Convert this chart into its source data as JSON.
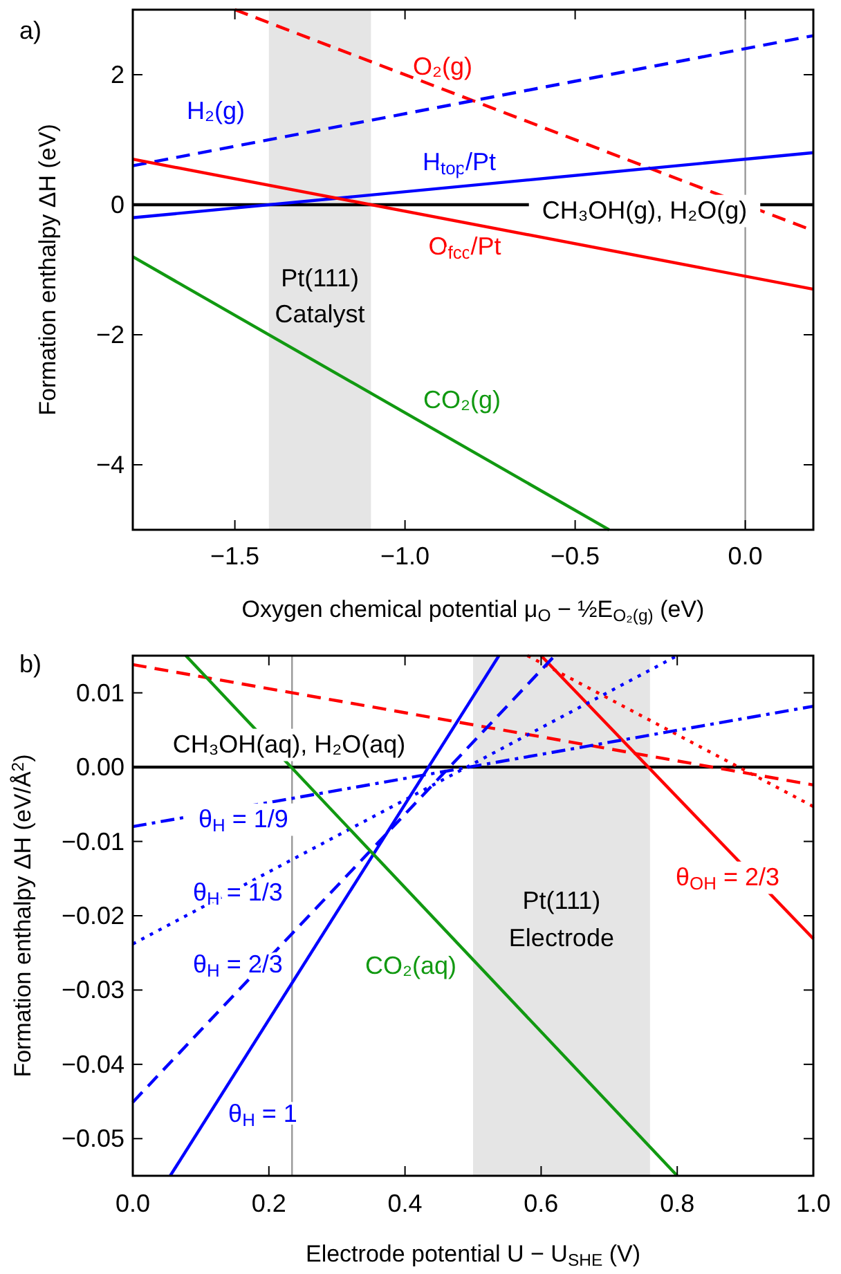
{
  "chart_data": [
    {
      "type": "line",
      "title": "a)",
      "xlabel": "Oxygen chemical potential μ$_{O}$ − ½E$_{O₂(g)}$ (eV)",
      "ylabel": "Formation enthalpy ΔH (eV)",
      "xlim": [
        -1.8,
        0.2
      ],
      "ylim": [
        -5,
        3
      ],
      "xticks": [
        {
          "value": -1.5,
          "label": "−1.5"
        },
        {
          "value": -1.0,
          "label": "−1.0"
        },
        {
          "value": -0.5,
          "label": "−0.5"
        },
        {
          "value": 0,
          "label": "0.0"
        }
      ],
      "yticks": [
        {
          "value": -4,
          "label": "−4"
        },
        {
          "value": -2,
          "label": "−2"
        },
        {
          "value": 0,
          "label": "0"
        },
        {
          "value": 2,
          "label": "2"
        }
      ],
      "bands": [
        {
          "axis": "x",
          "from": -1.4,
          "to": -1.1,
          "label": "Pt(111) Catalyst",
          "color": "#e5e5e5"
        }
      ],
      "ref_lines": [
        {
          "axis": "x",
          "value": 0,
          "color": "#999999"
        }
      ],
      "series": [
        {
          "name": "CH₃OH(g), H₂O(g)",
          "color": "#000000",
          "x": [
            -1.8,
            0.2
          ],
          "values": [
            0,
            0
          ],
          "line_style": "solid"
        },
        {
          "name": "O₂(g)",
          "color": "#ff0000",
          "x": [
            -1.5,
            0.2
          ],
          "values": [
            3,
            -0.4
          ],
          "line_style": "dashed"
        },
        {
          "name": "H₂(g)",
          "color": "#0000ff",
          "x": [
            -1.8,
            0.2
          ],
          "values": [
            0.6,
            2.6
          ],
          "line_style": "dashed"
        },
        {
          "name": "H$_{top}$/Pt",
          "color": "#0000ff",
          "x": [
            -1.8,
            0.2
          ],
          "values": [
            -0.2,
            0.8
          ],
          "line_style": "solid"
        },
        {
          "name": "O$_{fcc}$/Pt",
          "color": "#ff0000",
          "x": [
            -1.8,
            0.2
          ],
          "values": [
            0.7,
            -1.3
          ],
          "line_style": "solid"
        },
        {
          "name": "CO₂(g)",
          "color": "#119911",
          "x": [
            -1.8,
            -0.4
          ],
          "values": [
            -0.8,
            -5
          ],
          "line_style": "solid"
        }
      ]
    },
    {
      "type": "line",
      "title": "b)",
      "xlabel": "Electrode potential U − U$_{SHE}$ (V)",
      "ylabel": "Formation enthalpy ΔH (eV/Å$^{2}$)",
      "xlim": [
        0,
        1
      ],
      "ylim": [
        -0.055,
        0.015
      ],
      "xticks": [
        {
          "value": 0,
          "label": "0.0"
        },
        {
          "value": 0.2,
          "label": "0.2"
        },
        {
          "value": 0.4,
          "label": "0.4"
        },
        {
          "value": 0.6,
          "label": "0.6"
        },
        {
          "value": 0.8,
          "label": "0.8"
        },
        {
          "value": 1,
          "label": "1.0"
        }
      ],
      "yticks": [
        {
          "value": -0.05,
          "label": "−0.05"
        },
        {
          "value": -0.04,
          "label": "−0.04"
        },
        {
          "value": -0.03,
          "label": "−0.03"
        },
        {
          "value": -0.02,
          "label": "−0.02"
        },
        {
          "value": -0.01,
          "label": "−0.01"
        },
        {
          "value": 0,
          "label": "0.00"
        },
        {
          "value": 0.01,
          "label": "0.01"
        }
      ],
      "bands": [
        {
          "axis": "x",
          "from": 0.5,
          "to": 0.76,
          "label": "Pt(111) Electrode",
          "color": "#e5e5e5"
        }
      ],
      "ref_lines": [
        {
          "axis": "x",
          "value": 0.234,
          "color": "#999999"
        }
      ],
      "series": [
        {
          "name": "CH₃OH(aq), H₂O(aq)",
          "color": "#000000",
          "x": [
            0,
            1
          ],
          "values": [
            0,
            0
          ],
          "line_style": "solid"
        },
        {
          "color": "#ff0000",
          "x": [
            0,
            1
          ],
          "values": [
            0.0138,
            -0.0024
          ],
          "line_style": "dashed"
        },
        {
          "color": "#ff0000",
          "x": [
            0.58,
            1
          ],
          "values": [
            0.015,
            -0.0053
          ],
          "line_style": "dotted"
        },
        {
          "name": "θ$_{OH}$ = 2/3",
          "color": "#ff0000",
          "x": [
            0.6,
            1
          ],
          "values": [
            0.015,
            -0.0231
          ],
          "line_style": "solid"
        },
        {
          "name": "θ$_{H}$ = 1/9",
          "color": "#0000ff",
          "x": [
            0,
            1
          ],
          "values": [
            -0.008,
            0.0082
          ],
          "line_style": "dashdot"
        },
        {
          "name": "θ$_{H}$ = 1/3",
          "color": "#0000ff",
          "x": [
            0,
            0.8
          ],
          "values": [
            -0.0238,
            0.015
          ],
          "line_style": "dotted"
        },
        {
          "name": "θ$_{H}$ = 2/3",
          "color": "#0000ff",
          "x": [
            0,
            0.62
          ],
          "values": [
            -0.0451,
            0.015
          ],
          "line_style": "dashed"
        },
        {
          "name": "θ$_{H}$ = 1",
          "color": "#0000ff",
          "x": [
            0.055,
            0.538
          ],
          "values": [
            -0.055,
            0.015
          ],
          "line_style": "solid"
        },
        {
          "name": "CO₂(aq)",
          "color": "#119911",
          "x": [
            0.078,
            0.8
          ],
          "values": [
            0.015,
            -0.055
          ],
          "line_style": "solid"
        }
      ]
    }
  ]
}
